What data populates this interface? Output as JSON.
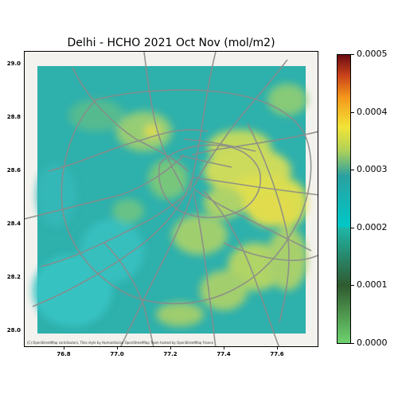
{
  "title": "Delhi - HCHO 2021 Oct Nov (mol/m2)",
  "attribution": "(C) OpenStreetMap contributors, Tiles style by Humanitarian OpenStreetMap Team hosted by OpenStreetMap France",
  "axes": {
    "y_ticks": [
      "29.0",
      "28.8",
      "28.6",
      "28.4",
      "28.2",
      "28.0"
    ],
    "x_ticks": [
      "76.8",
      "77.0",
      "77.2",
      "77.4",
      "77.6"
    ],
    "y_range": [
      27.96,
      29.04
    ],
    "x_range": [
      76.58,
      77.78
    ]
  },
  "colorbar": {
    "ticks": [
      "0.0005",
      "0.0004",
      "0.0003",
      "0.0002",
      "0.0001",
      "0.0000"
    ],
    "range": [
      0.0,
      0.0005
    ]
  },
  "colors": {
    "teal": "#2aa8a8",
    "cyan": "#33c0c0",
    "yellow": "#e7e24a",
    "road": "#8a8a8a"
  }
}
